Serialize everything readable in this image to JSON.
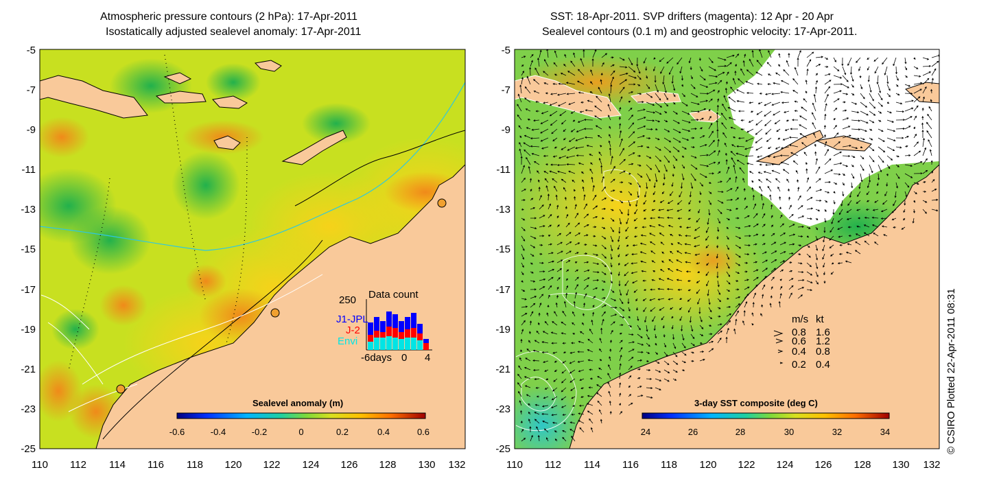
{
  "left_panel": {
    "title_line1": "Atmospheric pressure contours (2 hPa): 17-Apr-2011",
    "title_line2": "Isostatically adjusted sealevel anomaly: 17-Apr-2011",
    "y_ticks": [
      "-5",
      "-7",
      "-9",
      "-11",
      "-13",
      "-15",
      "-17",
      "-19",
      "-21",
      "-23",
      "-25"
    ],
    "x_ticks": [
      "110",
      "112",
      "114",
      "116",
      "118",
      "120",
      "122",
      "124",
      "126",
      "128",
      "130",
      "132"
    ],
    "colorbar": {
      "label": "Sealevel anomaly (m)",
      "ticks": [
        "-0.6",
        "-0.4",
        "-0.2",
        "0",
        "0.2",
        "0.4",
        "0.6"
      ]
    },
    "data_count": {
      "title": "Data count",
      "max_label": "250",
      "x_start": "-6days",
      "x_mid": "0",
      "x_end": "4",
      "legend": [
        {
          "name": "J1-JPL",
          "color": "#0000ff"
        },
        {
          "name": "J-2",
          "color": "#ff0000"
        },
        {
          "name": "Envi",
          "color": "#00e5e5"
        }
      ]
    }
  },
  "right_panel": {
    "title_line1": "SST: 18-Apr-2011. SVP drifters (magenta): 12 Apr - 20 Apr",
    "title_line2": "Sealevel contours (0.1 m) and geostrophic velocity: 17-Apr-2011.",
    "y_ticks": [
      "-5",
      "-7",
      "-9",
      "-11",
      "-13",
      "-15",
      "-17",
      "-19",
      "-21",
      "-23",
      "-25"
    ],
    "x_ticks": [
      "110",
      "112",
      "114",
      "116",
      "118",
      "120",
      "122",
      "124",
      "126",
      "128",
      "130",
      "132"
    ],
    "colorbar": {
      "label": "3-day SST composite (deg C)",
      "ticks": [
        "24",
        "26",
        "28",
        "30",
        "32",
        "34"
      ]
    },
    "speed_legend": {
      "header_ms": "m/s",
      "header_kt": "kt",
      "rows": [
        {
          "ms": "0.8",
          "kt": "1.6"
        },
        {
          "ms": "0.6",
          "kt": "1.2"
        },
        {
          "ms": "0.4",
          "kt": "0.8"
        },
        {
          "ms": "0.2",
          "kt": "0.4"
        }
      ]
    }
  },
  "credit": "© CSIRO Plotted 22-Apr-2011 08:31",
  "colors": {
    "land": "#f9c99a",
    "ocean_anomaly_mid": "#c8e020",
    "sst_mid": "#7fd04a"
  }
}
